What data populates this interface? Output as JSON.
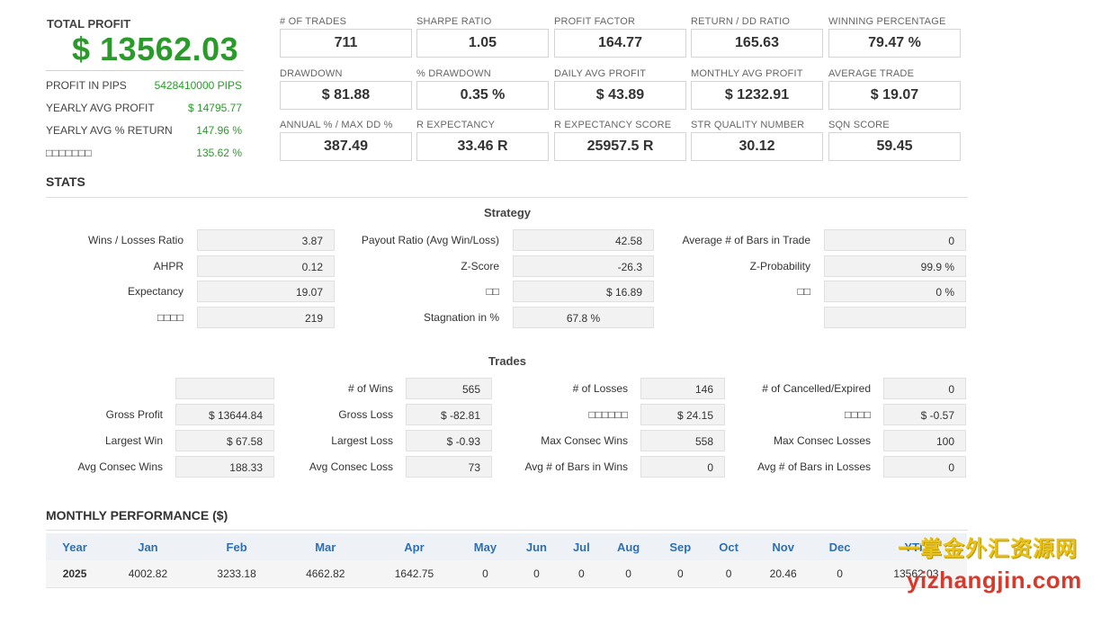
{
  "summary": {
    "total_label": "TOTAL PROFIT",
    "total_value": "$ 13562.03",
    "rows": [
      {
        "label": "PROFIT IN PIPS",
        "value": "5428410000 PIPS"
      },
      {
        "label": "YEARLY AVG PROFIT",
        "value": "$ 14795.77"
      },
      {
        "label": "YEARLY AVG % RETURN",
        "value": "147.96 %"
      },
      {
        "label": "□□□□□□□",
        "value": "135.62 %"
      }
    ]
  },
  "metrics": [
    {
      "label": "# OF TRADES",
      "value": "711"
    },
    {
      "label": "SHARPE RATIO",
      "value": "1.05"
    },
    {
      "label": "PROFIT FACTOR",
      "value": "164.77"
    },
    {
      "label": "RETURN / DD RATIO",
      "value": "165.63"
    },
    {
      "label": "WINNING PERCENTAGE",
      "value": "79.47 %"
    },
    {
      "label": "DRAWDOWN",
      "value": "$ 81.88"
    },
    {
      "label": "% DRAWDOWN",
      "value": "0.35 %"
    },
    {
      "label": "DAILY AVG PROFIT",
      "value": "$ 43.89"
    },
    {
      "label": "MONTHLY AVG PROFIT",
      "value": "$ 1232.91"
    },
    {
      "label": "AVERAGE TRADE",
      "value": "$ 19.07"
    },
    {
      "label": "ANNUAL % / MAX DD %",
      "value": "387.49"
    },
    {
      "label": "R EXPECTANCY",
      "value": "33.46 R"
    },
    {
      "label": "R EXPECTANCY SCORE",
      "value": "25957.5 R"
    },
    {
      "label": "STR QUALITY NUMBER",
      "value": "30.12"
    },
    {
      "label": "SQN SCORE",
      "value": "59.45"
    }
  ],
  "stats": {
    "title": "STATS",
    "strategy": {
      "title": "Strategy",
      "rows": [
        [
          {
            "label": "Wins / Losses Ratio",
            "value": "3.87"
          },
          {
            "label": "Payout Ratio (Avg Win/Loss)",
            "value": "42.58"
          },
          {
            "label": "Average # of Bars in Trade",
            "value": "0"
          }
        ],
        [
          {
            "label": "AHPR",
            "value": "0.12"
          },
          {
            "label": "Z-Score",
            "value": "-26.3"
          },
          {
            "label": "Z-Probability",
            "value": "99.9 %"
          }
        ],
        [
          {
            "label": "Expectancy",
            "value": "19.07"
          },
          {
            "label": "□□",
            "value": "$ 16.89"
          },
          {
            "label": "□□",
            "value": "0 %"
          }
        ],
        [
          {
            "label": "□□□□",
            "value": "219"
          },
          {
            "label": "Stagnation in %",
            "value": "67.8 %"
          },
          {
            "label": "",
            "value": ""
          }
        ]
      ]
    },
    "trades": {
      "title": "Trades",
      "rows": [
        [
          {
            "label": "",
            "value": ""
          },
          {
            "label": "# of Wins",
            "value": "565"
          },
          {
            "label": "# of Losses",
            "value": "146"
          },
          {
            "label": "# of Cancelled/Expired",
            "value": "0"
          }
        ],
        [
          {
            "label": "Gross Profit",
            "value": "$ 13644.84"
          },
          {
            "label": "Gross Loss",
            "value": "$ -82.81"
          },
          {
            "label": "□□□□□□",
            "value": "$ 24.15"
          },
          {
            "label": "□□□□",
            "value": "$ -0.57"
          }
        ],
        [
          {
            "label": "Largest Win",
            "value": "$ 67.58"
          },
          {
            "label": "Largest Loss",
            "value": "$ -0.93"
          },
          {
            "label": "Max Consec Wins",
            "value": "558"
          },
          {
            "label": "Max Consec Losses",
            "value": "100"
          }
        ],
        [
          {
            "label": "Avg Consec Wins",
            "value": "188.33"
          },
          {
            "label": "Avg Consec Loss",
            "value": "73"
          },
          {
            "label": "Avg # of Bars in Wins",
            "value": "0"
          },
          {
            "label": "Avg # of Bars in Losses",
            "value": "0"
          }
        ]
      ]
    }
  },
  "monthly": {
    "title": "MONTHLY PERFORMANCE ($)",
    "headers": [
      "Year",
      "Jan",
      "Feb",
      "Mar",
      "Apr",
      "May",
      "Jun",
      "Jul",
      "Aug",
      "Sep",
      "Oct",
      "Nov",
      "Dec",
      "YTD"
    ],
    "rows": [
      [
        "2025",
        "4002.82",
        "3233.18",
        "4662.82",
        "1642.75",
        "0",
        "0",
        "0",
        "0",
        "0",
        "0",
        "20.46",
        "0",
        "13562.03"
      ]
    ]
  },
  "watermark": {
    "line1": "一掌金外汇资源网",
    "line2": "yizhangjin.com"
  },
  "colors": {
    "profit_green": "#2a9b2a",
    "header_blue": "#2f6fb2"
  }
}
